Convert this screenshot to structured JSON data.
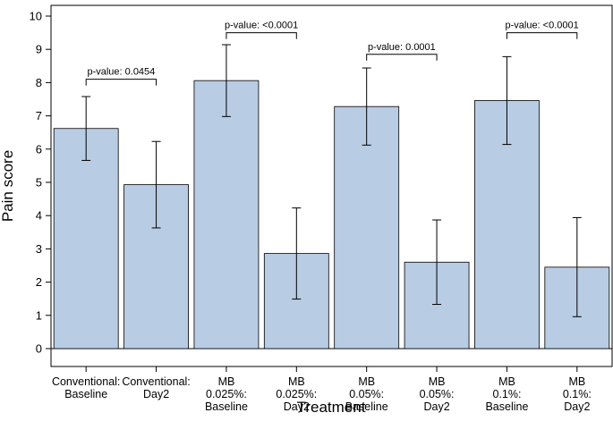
{
  "chart_data": {
    "type": "bar",
    "title": "",
    "xlabel": "Treatment",
    "ylabel": "Pain score",
    "ylim": [
      -0.6,
      10.5
    ],
    "yticks": [
      0,
      1,
      2,
      3,
      4,
      5,
      6,
      7,
      8,
      9,
      10
    ],
    "bar_color": "#b8cce4",
    "categories": [
      [
        "Conventional:",
        "Baseline"
      ],
      [
        "Conventional:",
        "Day2"
      ],
      [
        "MB",
        "0.025%:",
        "Baseline"
      ],
      [
        "MB",
        "0.025%:",
        "Day2"
      ],
      [
        "MB",
        "0.05%:",
        "Baseline"
      ],
      [
        "MB",
        "0.05%:",
        "Day2"
      ],
      [
        "MB",
        "0.1%:",
        "Baseline"
      ],
      [
        "MB",
        "0.1%:",
        "Day2"
      ]
    ],
    "values": [
      6.62,
      4.93,
      8.06,
      2.86,
      7.28,
      2.6,
      7.46,
      2.45
    ],
    "error_low": [
      5.66,
      3.63,
      6.98,
      1.49,
      6.12,
      1.33,
      6.14,
      0.96
    ],
    "error_high": [
      7.58,
      6.23,
      9.14,
      4.23,
      8.44,
      3.87,
      8.78,
      3.94
    ],
    "comparisons": [
      {
        "from": 0,
        "to": 1,
        "label": "p-value: 0.0454",
        "y": 8.1
      },
      {
        "from": 2,
        "to": 3,
        "label": "p-value: <0.0001",
        "y": 9.5
      },
      {
        "from": 4,
        "to": 5,
        "label": "p-value: 0.0001",
        "y": 8.85
      },
      {
        "from": 6,
        "to": 7,
        "label": "p-value: <0.0001",
        "y": 9.5
      }
    ]
  }
}
